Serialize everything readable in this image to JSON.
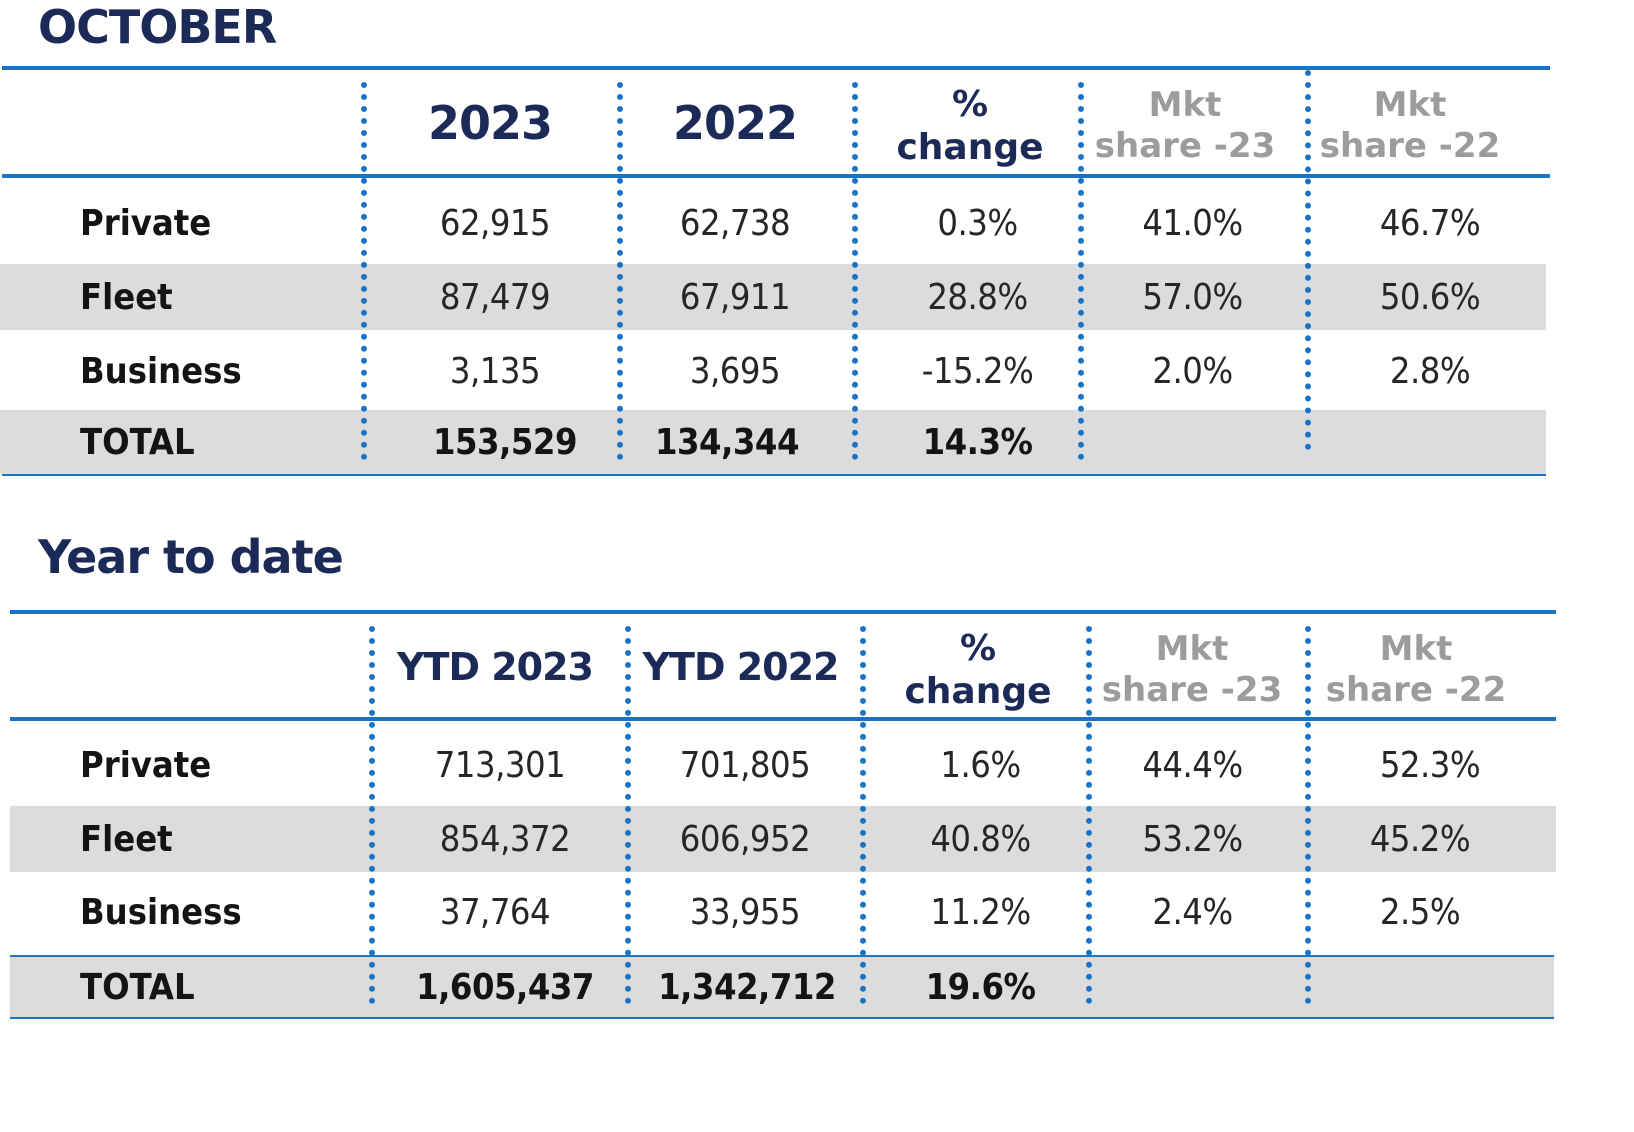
{
  "october": {
    "title": "OCTOBER",
    "headers": {
      "col1": "2023",
      "col2": "2022",
      "pct_line1": "%",
      "pct_line2": "change",
      "mkt23_line1": "Mkt",
      "mkt23_line2": "share -23",
      "mkt22_line1": "Mkt",
      "mkt22_line2": "share -22"
    },
    "rows": [
      {
        "label": "Private",
        "v1": "62,915",
        "v2": "62,738",
        "pct": "0.3%",
        "mkt23": "41.0%",
        "mkt22": "46.7%"
      },
      {
        "label": "Fleet",
        "v1": "87,479",
        "v2": "67,911",
        "pct": "28.8%",
        "mkt23": "57.0%",
        "mkt22": "50.6%"
      },
      {
        "label": "Business",
        "v1": "3,135",
        "v2": "3,695",
        "pct": "-15.2%",
        "mkt23": "2.0%",
        "mkt22": "2.8%"
      },
      {
        "label": "TOTAL",
        "v1": "153,529",
        "v2": "134,344",
        "pct": "14.3%",
        "mkt23": "",
        "mkt22": ""
      }
    ]
  },
  "ytd": {
    "title": "Year to date",
    "headers": {
      "col1": "YTD 2023",
      "col2": "YTD 2022",
      "pct_line1": "%",
      "pct_line2": "change",
      "mkt23_line1": "Mkt",
      "mkt23_line2": "share -23",
      "mkt22_line1": "Mkt",
      "mkt22_line2": "share -22"
    },
    "rows": [
      {
        "label": "Private",
        "v1": "713,301",
        "v2": "701,805",
        "pct": "1.6%",
        "mkt23": "44.4%",
        "mkt22": "52.3%"
      },
      {
        "label": "Fleet",
        "v1": "854,372",
        "v2": "606,952",
        "pct": "40.8%",
        "mkt23": "53.2%",
        "mkt22": "45.2%"
      },
      {
        "label": "Business",
        "v1": "37,764",
        "v2": "33,955",
        "pct": "11.2%",
        "mkt23": "2.4%",
        "mkt22": "2.5%"
      },
      {
        "label": "TOTAL",
        "v1": "1,605,437",
        "v2": "1,342,712",
        "pct": "19.6%",
        "mkt23": "",
        "mkt22": ""
      }
    ]
  },
  "colors": {
    "accent_blue": "#1b73c6",
    "title_navy": "#1b2a57",
    "muted_gray": "#9c9c9c",
    "row_shade": "#dcdcdc"
  }
}
